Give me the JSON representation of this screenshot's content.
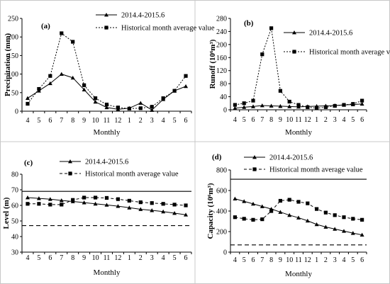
{
  "chart_data": [
    {
      "type": "line",
      "panel_label": "(a)",
      "ylabel": "Precipitation (mm)",
      "xlabel": "Monthly",
      "categories": [
        "4",
        "5",
        "6",
        "7",
        "8",
        "9",
        "10",
        "11",
        "12",
        "1",
        "2",
        "3",
        "4",
        "5",
        "6"
      ],
      "ylim": [
        0,
        250
      ],
      "yticks": [
        0,
        50,
        100,
        150,
        200,
        250
      ],
      "legend_position": "top-right",
      "series": [
        {
          "name": "2014.4-2015.6",
          "style": "solid",
          "marker": "triangle",
          "values": [
            35,
            55,
            75,
            100,
            90,
            58,
            25,
            10,
            5,
            8,
            22,
            3,
            32,
            55,
            67
          ]
        },
        {
          "name": "Historical month average value",
          "style": "dotted",
          "marker": "square",
          "values": [
            20,
            60,
            95,
            210,
            187,
            70,
            35,
            18,
            10,
            7,
            8,
            12,
            35,
            55,
            95
          ]
        }
      ]
    },
    {
      "type": "line",
      "panel_label": "(b)",
      "ylabel": "Runoff (10⁶m³)",
      "xlabel": "Monthly",
      "categories": [
        "4",
        "5",
        "6",
        "7",
        "8",
        "9",
        "10",
        "11",
        "12",
        "1",
        "2",
        "3",
        "4",
        "5",
        "6"
      ],
      "ylim": [
        0,
        280
      ],
      "yticks": [
        0,
        40,
        80,
        120,
        160,
        200,
        240,
        280
      ],
      "legend_position": "top-right",
      "series": [
        {
          "name": "2014.4-2015.6",
          "style": "solid",
          "marker": "triangle",
          "values": [
            5,
            8,
            10,
            13,
            12,
            11,
            10,
            9,
            10,
            11,
            12,
            13,
            15,
            16,
            18
          ]
        },
        {
          "name": "Historical month average value",
          "style": "dotted",
          "marker": "square",
          "values": [
            15,
            20,
            28,
            170,
            250,
            58,
            25,
            15,
            8,
            5,
            8,
            12,
            15,
            18,
            28
          ]
        }
      ]
    },
    {
      "type": "line",
      "panel_label": "(c)",
      "ylabel": "Level (m)",
      "xlabel": "Monthly",
      "categories": [
        "4",
        "5",
        "6",
        "7",
        "8",
        "9",
        "10",
        "11",
        "12",
        "1",
        "2",
        "3",
        "4",
        "5",
        "6"
      ],
      "ylim": [
        30,
        80
      ],
      "yticks": [
        30,
        40,
        50,
        60,
        70,
        80
      ],
      "legend_position": "top-right",
      "reference_lines": [
        {
          "value": 69,
          "style": "solid"
        },
        {
          "value": 47,
          "style": "dashed"
        }
      ],
      "series": [
        {
          "name": "2014.4-2015.6",
          "style": "solid",
          "marker": "triangle",
          "values": [
            65,
            64.5,
            64,
            63.2,
            62.5,
            61.8,
            61,
            60.3,
            59.5,
            58.5,
            57.5,
            56.8,
            56,
            55,
            54
          ]
        },
        {
          "name": "Historical month average value",
          "style": "dashed",
          "marker": "square",
          "values": [
            61,
            61,
            60.5,
            60.5,
            63.5,
            65,
            65,
            64.8,
            64,
            63,
            62,
            61.5,
            61,
            60.5,
            60
          ]
        }
      ]
    },
    {
      "type": "line",
      "panel_label": "(d)",
      "ylabel": "Capacity (10⁶m³)",
      "xlabel": "Monthly",
      "categories": [
        "4",
        "5",
        "6",
        "7",
        "8",
        "9",
        "10",
        "11",
        "12",
        "1",
        "2",
        "3",
        "4",
        "5",
        "6"
      ],
      "ylim": [
        0,
        800
      ],
      "yticks": [
        0,
        200,
        400,
        600,
        800
      ],
      "legend_position": "top-right",
      "reference_lines": [
        {
          "value": 710,
          "style": "solid"
        },
        {
          "value": 70,
          "style": "dashed"
        }
      ],
      "series": [
        {
          "name": "2014.4-2015.6",
          "style": "solid",
          "marker": "triangle",
          "values": [
            520,
            495,
            470,
            445,
            420,
            390,
            360,
            335,
            305,
            270,
            245,
            225,
            205,
            185,
            168
          ]
        },
        {
          "name": "Historical month average value",
          "style": "dashed",
          "marker": "square",
          "values": [
            340,
            325,
            315,
            320,
            400,
            500,
            510,
            490,
            475,
            420,
            385,
            360,
            340,
            325,
            315
          ]
        }
      ]
    }
  ]
}
